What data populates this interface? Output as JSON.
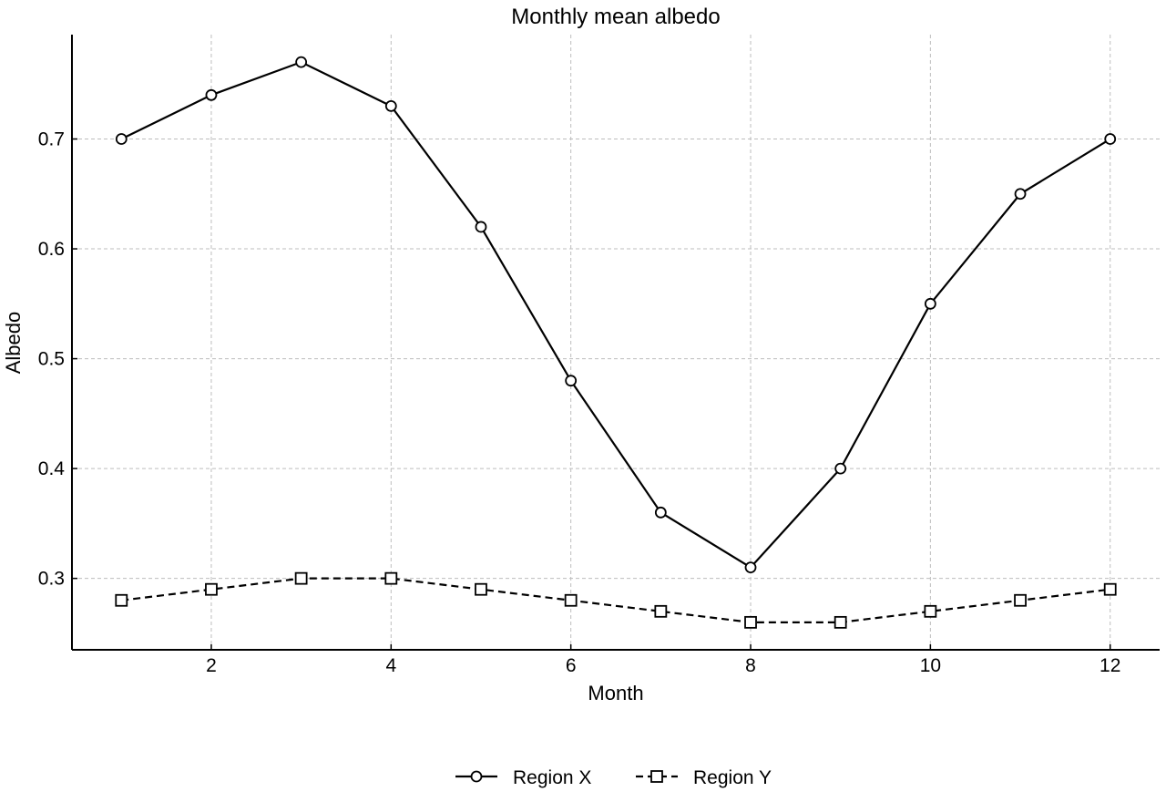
{
  "chart_data": {
    "type": "line",
    "title": "Monthly mean albedo",
    "xlabel": "Month",
    "ylabel": "Albedo",
    "x": [
      1,
      2,
      3,
      4,
      5,
      6,
      7,
      8,
      9,
      10,
      11,
      12
    ],
    "xlim": [
      0.45,
      12.55
    ],
    "ylim": [
      0.235,
      0.795
    ],
    "xticks": [
      2,
      4,
      6,
      8,
      10,
      12
    ],
    "yticks": [
      0.3,
      0.4,
      0.5,
      0.6,
      0.7
    ],
    "xtick_labels": [
      "2",
      "4",
      "6",
      "8",
      "10",
      "12"
    ],
    "ytick_labels": [
      "0.3",
      "0.4",
      "0.5",
      "0.6",
      "0.7"
    ],
    "grid": true,
    "legend_position": "bottom-center",
    "series": [
      {
        "name": "Region X",
        "marker": "circle",
        "line_style": "solid",
        "color": "#000000",
        "values": [
          0.7,
          0.74,
          0.77,
          0.73,
          0.62,
          0.48,
          0.36,
          0.31,
          0.4,
          0.55,
          0.65,
          0.7
        ]
      },
      {
        "name": "Region Y",
        "marker": "square",
        "line_style": "dashed",
        "color": "#000000",
        "values": [
          0.28,
          0.29,
          0.3,
          0.3,
          0.29,
          0.28,
          0.27,
          0.26,
          0.26,
          0.27,
          0.28,
          0.29
        ]
      }
    ]
  }
}
